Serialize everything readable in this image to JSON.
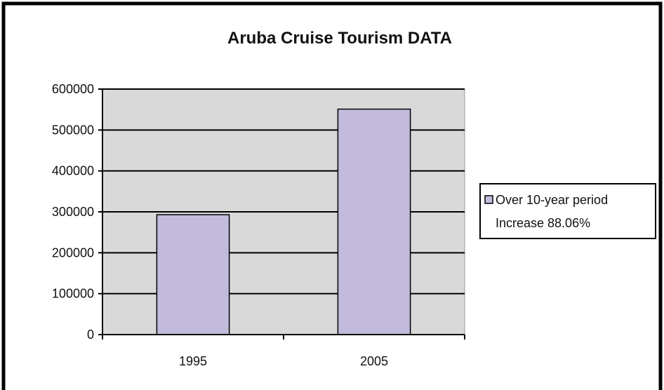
{
  "chart_data": {
    "type": "bar",
    "title": "Aruba Cruise Tourism DATA",
    "xlabel": "",
    "ylabel": "",
    "categories": [
      "1995",
      "2005"
    ],
    "series": [
      {
        "name": "Over 10-year period Increase 88.06%",
        "legend_lines": [
          "Over 10-year period",
          "Increase 88.06%"
        ],
        "values": [
          293000,
          551000
        ]
      }
    ],
    "ylim": [
      0,
      600000
    ],
    "yticks": [
      "0",
      "100000",
      "200000",
      "300000",
      "400000",
      "500000",
      "600000"
    ],
    "grid": true,
    "legend_position": "right",
    "colors": {
      "bar_fill": "#c3bbdc",
      "bar_stroke": "#000000",
      "plot_background": "#d9d9d9",
      "grid": "#000000",
      "frame": "#000000"
    }
  }
}
